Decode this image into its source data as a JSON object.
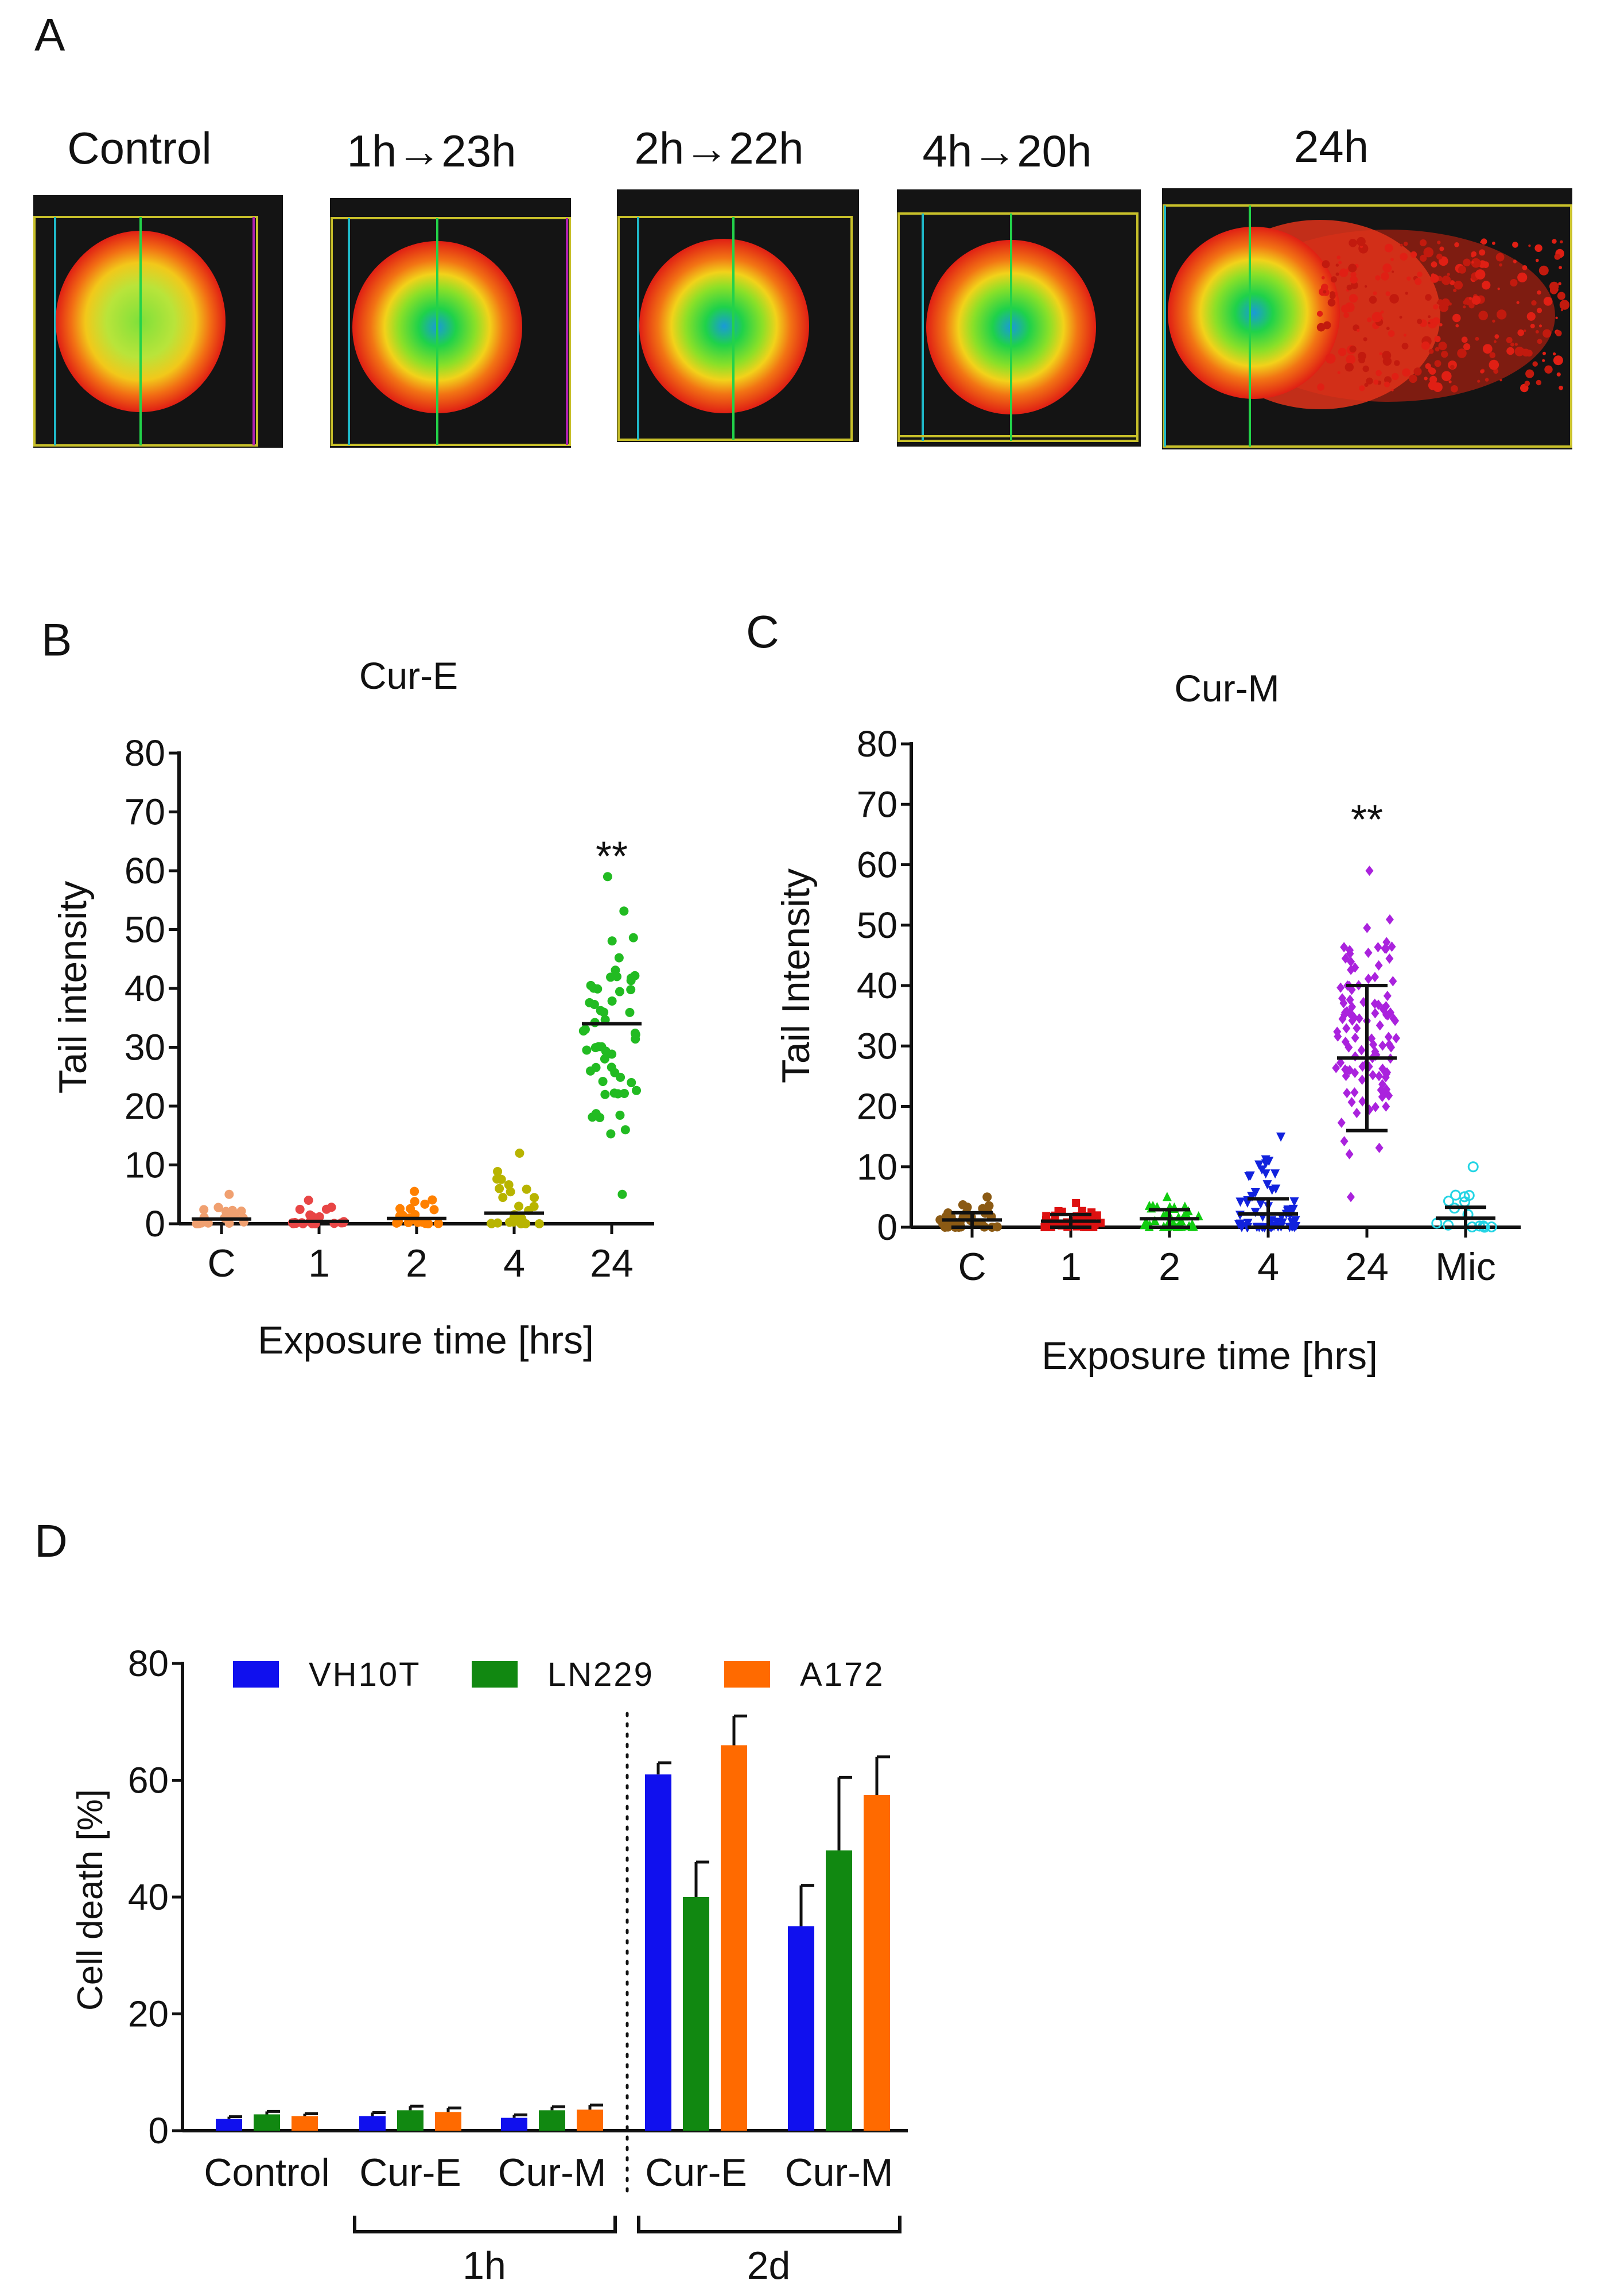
{
  "panels": {
    "a": {
      "letter": "A"
    },
    "b": {
      "letter": "B"
    },
    "c": {
      "letter": "C"
    },
    "d": {
      "letter": "D"
    }
  },
  "comet_images": {
    "labels": [
      "Control",
      "1h→23h",
      "2h→22h",
      "4h→20h",
      "24h"
    ],
    "colors": {
      "background": "#141414",
      "frame": "#c8c02a",
      "inner": "#1fd24a",
      "outer": "#e01f14"
    }
  },
  "chart_data": [
    {
      "id": "B",
      "type": "scatter",
      "title": "Cur-E",
      "xlabel": "Exposure time [hrs]",
      "ylabel": "Tail  intensity",
      "categories": [
        "C",
        "1",
        "2",
        "4",
        "24"
      ],
      "ylim": [
        0,
        80
      ],
      "yticks": [
        0,
        10,
        20,
        30,
        40,
        50,
        60,
        70,
        80
      ],
      "series": [
        {
          "name": "C",
          "color": "#f0a070",
          "median": 0.8,
          "n": 20,
          "spread": [
            0,
            5
          ]
        },
        {
          "name": "1",
          "color": "#e84545",
          "median": 0.4,
          "n": 20,
          "spread": [
            0,
            4
          ]
        },
        {
          "name": "2",
          "color": "#ff8000",
          "median": 0.9,
          "n": 22,
          "spread": [
            0,
            5.5
          ]
        },
        {
          "name": "4",
          "color": "#b8b400",
          "median": 1.8,
          "n": 25,
          "spread": [
            0,
            12
          ]
        },
        {
          "name": "24",
          "color": "#22bb22",
          "median": 34,
          "n": 55,
          "spread": [
            5,
            59
          ]
        }
      ],
      "annotations": [
        {
          "category": "24",
          "text": "**",
          "y": 63
        }
      ]
    },
    {
      "id": "C",
      "type": "scatter",
      "title": "Cur-M",
      "xlabel": "Exposure time [hrs]",
      "ylabel": "Tail Intensity",
      "categories": [
        "C",
        "1",
        "2",
        "4",
        "24",
        "Mic"
      ],
      "ylim": [
        0,
        80
      ],
      "yticks": [
        0,
        10,
        20,
        30,
        40,
        50,
        60,
        70,
        80
      ],
      "series": [
        {
          "name": "C",
          "color": "#8b5a14",
          "marker": "circle",
          "mean": 1.2,
          "sd": 1.2,
          "n": 40,
          "spread": [
            0,
            5
          ]
        },
        {
          "name": "1",
          "color": "#dd1111",
          "marker": "square",
          "mean": 1.0,
          "sd": 1.1,
          "n": 40,
          "spread": [
            0,
            4
          ]
        },
        {
          "name": "2",
          "color": "#11cc11",
          "marker": "triangle-up",
          "mean": 1.4,
          "sd": 1.5,
          "n": 40,
          "spread": [
            0,
            5
          ]
        },
        {
          "name": "4",
          "color": "#1122dd",
          "marker": "triangle-down",
          "mean": 2.2,
          "sd": 2.5,
          "n": 60,
          "spread": [
            0,
            15
          ]
        },
        {
          "name": "24",
          "color": "#aa22dd",
          "marker": "diamond",
          "mean": 28,
          "sd": 12,
          "n": 110,
          "spread": [
            5,
            59
          ]
        },
        {
          "name": "Mic",
          "color": "#22d4e4",
          "marker": "open-circle",
          "mean": 1.5,
          "sd": 1.8,
          "n": 15,
          "spread": [
            0,
            10
          ]
        }
      ],
      "annotations": [
        {
          "category": "24",
          "text": "**",
          "y": 68
        }
      ]
    },
    {
      "id": "D",
      "type": "bar",
      "ylabel": "Cell death [%]",
      "xlabel": "",
      "categories": [
        "Control",
        "Cur-E",
        "Cur-M",
        "Cur-E",
        "Cur-M"
      ],
      "group_labels": [
        {
          "label": "1h",
          "from": 1,
          "to": 2
        },
        {
          "label": "2d",
          "from": 3,
          "to": 4
        }
      ],
      "ylim": [
        0,
        80
      ],
      "yticks": [
        0,
        20,
        40,
        60,
        80
      ],
      "legend_position": "top",
      "series": [
        {
          "name": "VH10T",
          "color": "#1010ee",
          "values": [
            2,
            2.5,
            2.2,
            61,
            35
          ],
          "errors": [
            0.4,
            0.6,
            0.5,
            2,
            7
          ]
        },
        {
          "name": "LN229",
          "color": "#118811",
          "values": [
            2.8,
            3.5,
            3.5,
            40,
            48
          ],
          "errors": [
            0.5,
            0.7,
            0.6,
            6,
            12.5
          ]
        },
        {
          "name": "A172",
          "color": "#ff6a00",
          "values": [
            2.5,
            3.2,
            3.6,
            66,
            57.5
          ],
          "errors": [
            0.4,
            0.7,
            0.8,
            5,
            6.5
          ]
        }
      ]
    }
  ]
}
